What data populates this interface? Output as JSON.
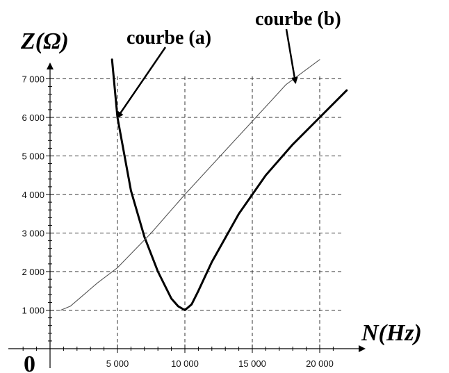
{
  "chart_data": {
    "type": "line",
    "xlabel": "N(Hz)",
    "ylabel": "Z(Ω)",
    "origin_label": "0",
    "xlim": [
      0,
      22000
    ],
    "ylim": [
      0,
      7000
    ],
    "x_ticks": [
      {
        "value": 5000,
        "label": "5 000"
      },
      {
        "value": 10000,
        "label": "10 000"
      },
      {
        "value": 15000,
        "label": "15 000"
      },
      {
        "value": 20000,
        "label": "20 000"
      }
    ],
    "y_ticks": [
      {
        "value": 1000,
        "label": "1 000"
      },
      {
        "value": 2000,
        "label": "2 000"
      },
      {
        "value": 3000,
        "label": "3 000"
      },
      {
        "value": 4000,
        "label": "4 000"
      },
      {
        "value": 5000,
        "label": "5 000"
      },
      {
        "value": 6000,
        "label": "6 000"
      },
      {
        "value": 7000,
        "label": "7 000"
      }
    ],
    "grid": true,
    "series": [
      {
        "name": "courbe (a)",
        "stroke": "#000000",
        "weight": "thick",
        "x": [
          4600,
          5000,
          6000,
          7000,
          8000,
          9000,
          9500,
          10000,
          10500,
          11000,
          12000,
          14000,
          16000,
          18000,
          20000,
          22000
        ],
        "y": [
          7500,
          6000,
          4100,
          2900,
          2000,
          1300,
          1100,
          1000,
          1150,
          1500,
          2250,
          3500,
          4500,
          5300,
          6000,
          6700
        ]
      },
      {
        "name": "courbe (b)",
        "stroke": "#555555",
        "weight": "thin",
        "x": [
          800,
          1500,
          2500,
          3500,
          5000,
          7500,
          10000,
          12500,
          15000,
          17500,
          20000
        ],
        "y": [
          1000,
          1100,
          1400,
          1700,
          2100,
          3000,
          4000,
          4950,
          5900,
          6850,
          7500
        ]
      }
    ],
    "annotations": [
      {
        "text": "courbe (a)",
        "target_series": "courbe (a)",
        "target_x": 5000,
        "target_y": 6000
      },
      {
        "text": "courbe (b)",
        "target_series": "courbe (b)",
        "target_x": 18200,
        "target_y": 6900
      }
    ]
  }
}
